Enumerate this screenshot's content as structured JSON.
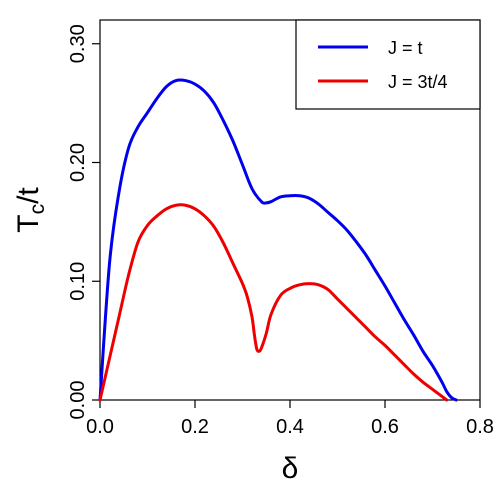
{
  "chart_data": {
    "type": "line",
    "xlabel": "δ",
    "ylabel": {
      "main": "T",
      "subscript": "c",
      "suffix": "/t"
    },
    "xlim": [
      0.0,
      0.8
    ],
    "ylim": [
      0.0,
      0.32
    ],
    "x_ticks": [
      "0.0",
      "0.2",
      "0.4",
      "0.6",
      "0.8"
    ],
    "y_ticks": [
      "0.00",
      "0.10",
      "0.20",
      "0.30"
    ],
    "grid": false,
    "legend_position": "top-right",
    "series": [
      {
        "name": "J = t",
        "color": "#0000ee",
        "points": [
          [
            0.0,
            0.0
          ],
          [
            0.02,
            0.115
          ],
          [
            0.04,
            0.175
          ],
          [
            0.06,
            0.212
          ],
          [
            0.08,
            0.23
          ],
          [
            0.1,
            0.242
          ],
          [
            0.12,
            0.254
          ],
          [
            0.14,
            0.264
          ],
          [
            0.16,
            0.269
          ],
          [
            0.18,
            0.269
          ],
          [
            0.2,
            0.266
          ],
          [
            0.22,
            0.26
          ],
          [
            0.24,
            0.25
          ],
          [
            0.26,
            0.235
          ],
          [
            0.28,
            0.218
          ],
          [
            0.3,
            0.198
          ],
          [
            0.32,
            0.178
          ],
          [
            0.34,
            0.167
          ],
          [
            0.35,
            0.166
          ],
          [
            0.36,
            0.167
          ],
          [
            0.38,
            0.171
          ],
          [
            0.4,
            0.172
          ],
          [
            0.42,
            0.172
          ],
          [
            0.44,
            0.17
          ],
          [
            0.46,
            0.165
          ],
          [
            0.48,
            0.158
          ],
          [
            0.5,
            0.151
          ],
          [
            0.52,
            0.143
          ],
          [
            0.54,
            0.133
          ],
          [
            0.56,
            0.122
          ],
          [
            0.58,
            0.109
          ],
          [
            0.6,
            0.096
          ],
          [
            0.62,
            0.082
          ],
          [
            0.64,
            0.068
          ],
          [
            0.66,
            0.055
          ],
          [
            0.68,
            0.041
          ],
          [
            0.7,
            0.029
          ],
          [
            0.72,
            0.015
          ],
          [
            0.73,
            0.007
          ],
          [
            0.74,
            0.002
          ],
          [
            0.75,
            0.0
          ]
        ]
      },
      {
        "name": "J = 3t/4",
        "color": "#ee0000",
        "points": [
          [
            0.0,
            0.0
          ],
          [
            0.02,
            0.035
          ],
          [
            0.04,
            0.07
          ],
          [
            0.06,
            0.105
          ],
          [
            0.08,
            0.133
          ],
          [
            0.1,
            0.147
          ],
          [
            0.12,
            0.155
          ],
          [
            0.14,
            0.161
          ],
          [
            0.16,
            0.164
          ],
          [
            0.18,
            0.164
          ],
          [
            0.2,
            0.161
          ],
          [
            0.22,
            0.155
          ],
          [
            0.24,
            0.146
          ],
          [
            0.26,
            0.132
          ],
          [
            0.28,
            0.115
          ],
          [
            0.3,
            0.098
          ],
          [
            0.31,
            0.087
          ],
          [
            0.32,
            0.07
          ],
          [
            0.325,
            0.055
          ],
          [
            0.33,
            0.043
          ],
          [
            0.335,
            0.041
          ],
          [
            0.34,
            0.044
          ],
          [
            0.35,
            0.056
          ],
          [
            0.36,
            0.072
          ],
          [
            0.38,
            0.088
          ],
          [
            0.4,
            0.094
          ],
          [
            0.42,
            0.097
          ],
          [
            0.44,
            0.098
          ],
          [
            0.46,
            0.097
          ],
          [
            0.48,
            0.093
          ],
          [
            0.5,
            0.085
          ],
          [
            0.52,
            0.077
          ],
          [
            0.54,
            0.069
          ],
          [
            0.56,
            0.061
          ],
          [
            0.58,
            0.053
          ],
          [
            0.6,
            0.046
          ],
          [
            0.62,
            0.038
          ],
          [
            0.64,
            0.03
          ],
          [
            0.66,
            0.022
          ],
          [
            0.68,
            0.015
          ],
          [
            0.7,
            0.009
          ],
          [
            0.72,
            0.003
          ],
          [
            0.73,
            0.0
          ]
        ]
      }
    ]
  }
}
